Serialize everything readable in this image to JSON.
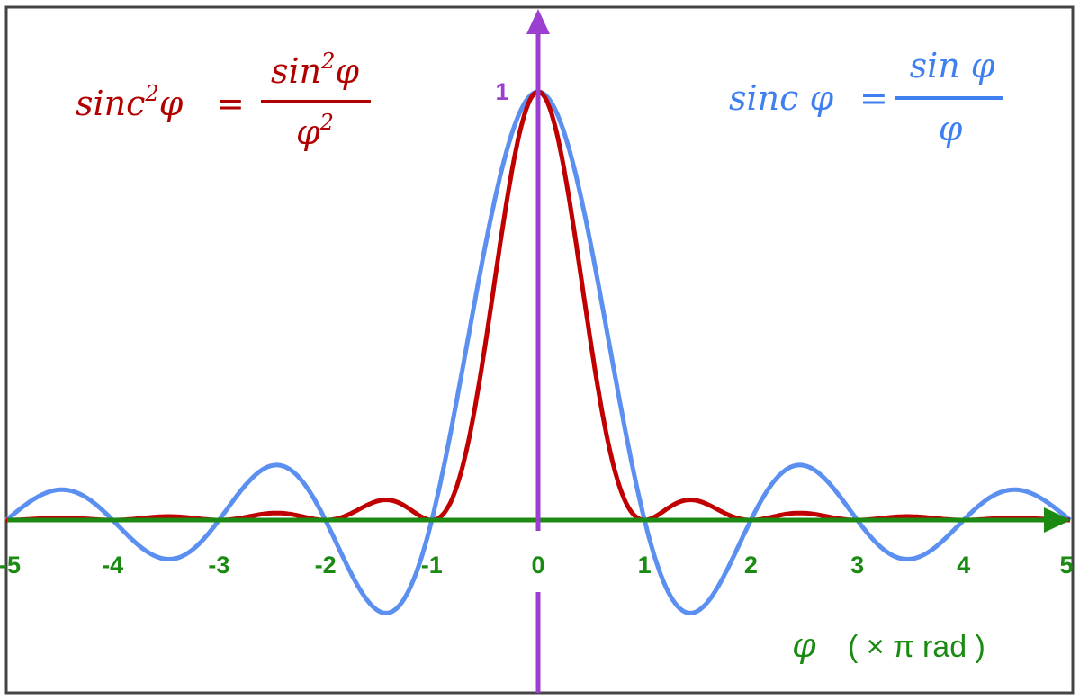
{
  "chart_data": {
    "type": "line",
    "xlim": [
      -5,
      5
    ],
    "ylim": [
      -0.25,
      1.1
    ],
    "x_ticks": [
      "-5",
      "-4",
      "-3",
      "-2",
      "-1",
      "0",
      "1",
      "2",
      "3",
      "4",
      "5"
    ],
    "y_tick_label": "1",
    "xlabel": {
      "symbol": "φ",
      "unit": "( × π  rad )"
    },
    "grid": false,
    "colors": {
      "sinc": "#5b8ff0",
      "sinc2": "#c00000",
      "x_axis": "#1a8a12",
      "y_axis": "#9b3fd0",
      "frame": "#444444"
    },
    "series": [
      {
        "name": "sinc φ = sin φ / φ",
        "function": "sinc",
        "x": [
          -5,
          -4.5,
          -4,
          -3.5,
          -3,
          -2.5,
          -2,
          -1.5,
          -1,
          -0.5,
          0,
          0.5,
          1,
          1.5,
          2,
          2.5,
          3,
          3.5,
          4,
          4.5,
          5
        ],
        "values": [
          0,
          0.071,
          0,
          -0.091,
          0,
          0.127,
          0,
          -0.212,
          0,
          0.637,
          1,
          0.637,
          0,
          -0.212,
          0,
          0.127,
          0,
          -0.091,
          0,
          0.071,
          0
        ]
      },
      {
        "name": "sinc²φ = sin²φ / φ²",
        "function": "sinc2",
        "x": [
          -5,
          -4.5,
          -4,
          -3.5,
          -3,
          -2.5,
          -2,
          -1.5,
          -1,
          -0.5,
          0,
          0.5,
          1,
          1.5,
          2,
          2.5,
          3,
          3.5,
          4,
          4.5,
          5
        ],
        "values": [
          0,
          0.005,
          0,
          0.008,
          0,
          0.016,
          0,
          0.045,
          0,
          0.405,
          1,
          0.405,
          0,
          0.045,
          0,
          0.016,
          0,
          0.008,
          0,
          0.005,
          0
        ]
      }
    ],
    "annotations": {
      "sinc2": {
        "lhs": "sinc",
        "lhs_sup": "2",
        "var": "φ",
        "eq": "=",
        "num": "sin",
        "num_sup": "2",
        "num_var": "φ",
        "den": "φ",
        "den_sup": "2"
      },
      "sinc": {
        "lhs": "sinc φ",
        "eq": "=",
        "num": "sin φ",
        "den": "φ"
      }
    }
  }
}
